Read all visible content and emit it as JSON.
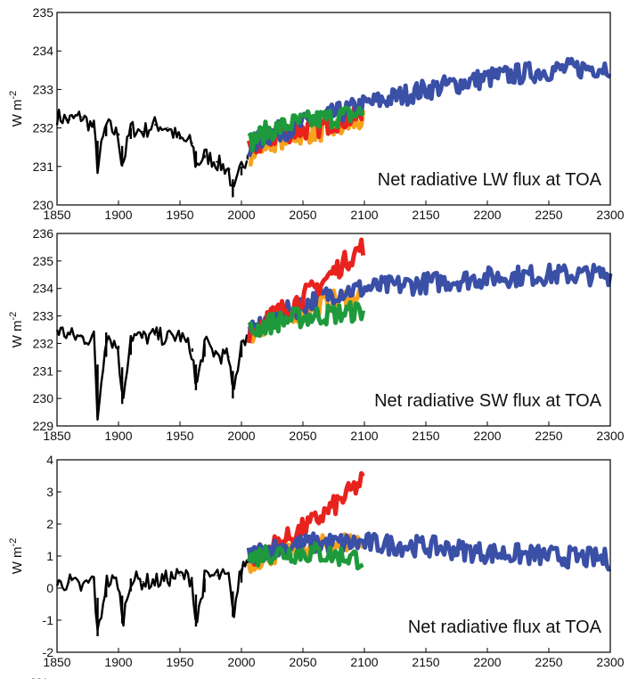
{
  "figure": {
    "cut_off_label": "201"
  },
  "legend_colors": {
    "historical": "#000000",
    "extension": "#3a4fa6",
    "red": "#e8231e",
    "orange": "#f7a21b",
    "blue": "#3a4fa6",
    "green": "#1e9a3c"
  },
  "chart_data": [
    {
      "type": "line",
      "title": "Net radiative LW flux at TOA",
      "ylabel": "W m",
      "ylabel_exp": "-2",
      "xlim": [
        1850,
        2300
      ],
      "ylim": [
        230,
        235
      ],
      "xticks": [
        1850,
        1900,
        1950,
        2000,
        2050,
        2100,
        2150,
        2200,
        2250,
        2300
      ],
      "yticks": [
        230,
        231,
        232,
        233,
        234,
        235
      ],
      "grid": false,
      "series": [
        {
          "color": "#000000",
          "x": [
            1850,
            1860,
            1870,
            1880,
            1883,
            1890,
            1900,
            1903,
            1910,
            1920,
            1930,
            1940,
            1950,
            1960,
            1963,
            1970,
            1980,
            1990,
            1993,
            2000,
            2005
          ],
          "y": [
            232.3,
            232.2,
            232.3,
            232.0,
            231.0,
            232.1,
            231.8,
            231.0,
            232.0,
            231.9,
            232.1,
            232.0,
            231.7,
            231.6,
            231.0,
            231.3,
            231.1,
            230.9,
            230.2,
            231.0,
            231.3
          ]
        },
        {
          "color": "#f7a21b",
          "x": [
            2006,
            2020,
            2040,
            2060,
            2080,
            2100
          ],
          "y": [
            231.3,
            231.6,
            231.8,
            231.9,
            232.0,
            232.2
          ]
        },
        {
          "color": "#e8231e",
          "x": [
            2006,
            2020,
            2040,
            2060,
            2080,
            2100
          ],
          "y": [
            231.4,
            231.7,
            231.9,
            232.0,
            232.2,
            232.3
          ]
        },
        {
          "color": "#3a4fa6",
          "x": [
            2006,
            2020,
            2040,
            2060,
            2080,
            2100,
            2150,
            2200,
            2250,
            2300
          ],
          "y": [
            231.5,
            231.8,
            232.0,
            232.2,
            232.4,
            232.6,
            233.0,
            233.3,
            233.5,
            233.6
          ]
        },
        {
          "color": "#1e9a3c",
          "x": [
            2006,
            2020,
            2040,
            2060,
            2080,
            2100
          ],
          "y": [
            231.6,
            231.9,
            232.1,
            232.2,
            232.3,
            232.4
          ]
        }
      ]
    },
    {
      "type": "line",
      "title": "Net radiative SW flux at TOA",
      "ylabel": "W m",
      "ylabel_exp": "-2",
      "xlim": [
        1850,
        2300
      ],
      "ylim": [
        229,
        236
      ],
      "xticks": [
        1850,
        1900,
        1950,
        2000,
        2050,
        2100,
        2150,
        2200,
        2250,
        2300
      ],
      "yticks": [
        229,
        230,
        231,
        232,
        233,
        234,
        235,
        236
      ],
      "grid": false,
      "series": [
        {
          "color": "#000000",
          "x": [
            1850,
            1860,
            1870,
            1880,
            1883,
            1890,
            1900,
            1903,
            1910,
            1920,
            1930,
            1940,
            1950,
            1960,
            1963,
            1970,
            1980,
            1990,
            1993,
            2000,
            2005
          ],
          "y": [
            232.5,
            232.3,
            232.2,
            232.2,
            229.3,
            232.4,
            231.8,
            229.8,
            232.3,
            232.2,
            232.3,
            232.2,
            232.3,
            231.7,
            230.3,
            232.0,
            231.6,
            231.5,
            230.0,
            232.1,
            232.3
          ]
        },
        {
          "color": "#f7a21b",
          "x": [
            2006,
            2020,
            2040,
            2060,
            2080,
            2100
          ],
          "y": [
            232.3,
            232.7,
            233.1,
            233.4,
            233.6,
            233.8
          ]
        },
        {
          "color": "#3a4fa6",
          "x": [
            2006,
            2020,
            2040,
            2060,
            2080,
            2100,
            2150,
            2200,
            2250,
            2300
          ],
          "y": [
            232.3,
            232.8,
            233.2,
            233.6,
            233.9,
            234.0,
            234.2,
            234.4,
            234.5,
            234.5
          ]
        },
        {
          "color": "#e8231e",
          "x": [
            2006,
            2020,
            2040,
            2060,
            2080,
            2100
          ],
          "y": [
            232.4,
            232.9,
            233.4,
            234.0,
            234.8,
            235.6
          ]
        },
        {
          "color": "#1e9a3c",
          "x": [
            2006,
            2020,
            2040,
            2060,
            2080,
            2100
          ],
          "y": [
            232.4,
            232.7,
            232.9,
            233.0,
            233.1,
            233.2
          ]
        }
      ]
    },
    {
      "type": "line",
      "title": "Net radiative flux at TOA",
      "ylabel": "W m",
      "ylabel_exp": "-2",
      "xlim": [
        1850,
        2300
      ],
      "ylim": [
        -2,
        4
      ],
      "xticks": [
        1850,
        1900,
        1950,
        2000,
        2050,
        2100,
        2150,
        2200,
        2250,
        2300
      ],
      "yticks": [
        -2,
        -1,
        0,
        1,
        2,
        3,
        4
      ],
      "grid": false,
      "series": [
        {
          "color": "#000000",
          "x": [
            1850,
            1860,
            1870,
            1880,
            1883,
            1890,
            1900,
            1903,
            1910,
            1920,
            1930,
            1940,
            1950,
            1960,
            1963,
            1970,
            1980,
            1990,
            1993,
            2000,
            2005
          ],
          "y": [
            0.1,
            0.2,
            0.0,
            0.3,
            -1.5,
            0.2,
            0.2,
            -1.1,
            0.3,
            0.2,
            0.2,
            0.3,
            0.4,
            0.3,
            -1.2,
            0.3,
            0.4,
            0.3,
            -0.9,
            0.6,
            0.9
          ]
        },
        {
          "color": "#f7a21b",
          "x": [
            2006,
            2020,
            2040,
            2060,
            2080,
            2100
          ],
          "y": [
            0.8,
            1.0,
            1.2,
            1.3,
            1.4,
            1.5
          ]
        },
        {
          "color": "#e8231e",
          "x": [
            2006,
            2020,
            2040,
            2060,
            2080,
            2100
          ],
          "y": [
            0.9,
            1.2,
            1.6,
            2.1,
            2.7,
            3.4
          ]
        },
        {
          "color": "#3a4fa6",
          "x": [
            2006,
            2020,
            2040,
            2060,
            2080,
            2100,
            2150,
            2200,
            2250,
            2300
          ],
          "y": [
            1.0,
            1.2,
            1.3,
            1.4,
            1.4,
            1.4,
            1.3,
            1.1,
            1.0,
            0.9
          ]
        },
        {
          "color": "#1e9a3c",
          "x": [
            2006,
            2020,
            2040,
            2060,
            2080,
            2100
          ],
          "y": [
            0.9,
            1.1,
            1.1,
            1.1,
            1.0,
            0.9
          ]
        }
      ]
    }
  ]
}
